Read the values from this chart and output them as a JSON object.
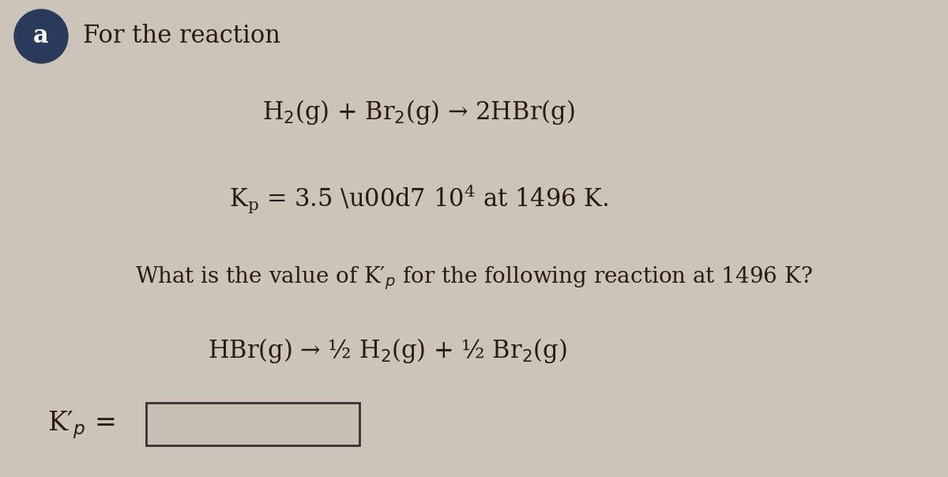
{
  "background_color": "#ccc4b8",
  "text_color": "#2a1a10",
  "circle_color": "#2a3a5a",
  "circle_text_color": "#ffffff",
  "circle_label": "a",
  "title_label": "For the reaction",
  "reaction1": "H$_2$(g) + Br$_2$(g) → 2HBr(g)",
  "kp_line_parts": [
    "K",
    "p",
    " = 3.5 × 10",
    "4",
    " at 1496 K."
  ],
  "question_line": "What is the value of K′$_{p}$ for the following reaction at 1496 K?",
  "reaction2": "HBr(g) → ½ H$_2$(g) + ½ Br$_2$(g)",
  "answer_label": "K′$_{p}$ =",
  "box_facecolor": "#c8c0b4",
  "box_edgecolor": "#333333",
  "fs_title": 22,
  "fs_reaction": 22,
  "fs_kp": 22,
  "fs_question": 20,
  "fs_answer": 24
}
